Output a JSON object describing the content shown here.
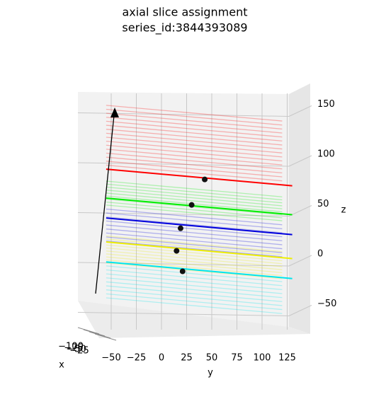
{
  "chart_data": {
    "type": "slice3d",
    "title": "axial slice assignment",
    "subtitle": "series_id:3844393089",
    "xlabel": "x",
    "ylabel": "y",
    "zlabel": "z",
    "xticks": [
      {
        "value": -100,
        "label": "−100"
      },
      {
        "value": -75,
        "label": "−75"
      },
      {
        "value": -50,
        "label": "−50"
      },
      {
        "value": -25,
        "label": "−25"
      }
    ],
    "ylim": [
      -60,
      148
    ],
    "yticks": [
      {
        "value": -50,
        "label": "−50"
      },
      {
        "value": -25,
        "label": "−25"
      },
      0,
      25,
      50,
      75,
      100,
      125
    ],
    "zlim": [
      -70,
      175
    ],
    "zticks": [
      {
        "value": -50,
        "label": "−50"
      },
      0,
      50,
      100,
      150
    ],
    "grid": true,
    "series": [
      {
        "color": "#ff0000",
        "highlight": 94,
        "slices": [
          98,
          102,
          106,
          110,
          114,
          118,
          122,
          126,
          130,
          134,
          138,
          142,
          146,
          150,
          154,
          158
        ]
      },
      {
        "color": "#00ee00",
        "highlight": 65,
        "slices": [
          58,
          61,
          64,
          67,
          70,
          73,
          76,
          79,
          82
        ]
      },
      {
        "color": "#0000dd",
        "highlight": 45,
        "slices": [
          22,
          26,
          30,
          34,
          38,
          42,
          46,
          50,
          54
        ]
      },
      {
        "color": "#eeee00",
        "highlight": 21,
        "slices": [
          0,
          3,
          6,
          9,
          12,
          15,
          18,
          24,
          27
        ]
      },
      {
        "color": "#00e5ee",
        "highlight": 1,
        "slices": [
          -35,
          -31,
          -27,
          -23,
          -19,
          -15,
          -11,
          -7,
          -3
        ]
      }
    ],
    "points": {
      "color": "#111111",
      "y": [
        43,
        30,
        19,
        15,
        21
      ],
      "z": [
        92.5,
        65.8,
        41.4,
        18.4,
        -1.6
      ]
    }
  }
}
